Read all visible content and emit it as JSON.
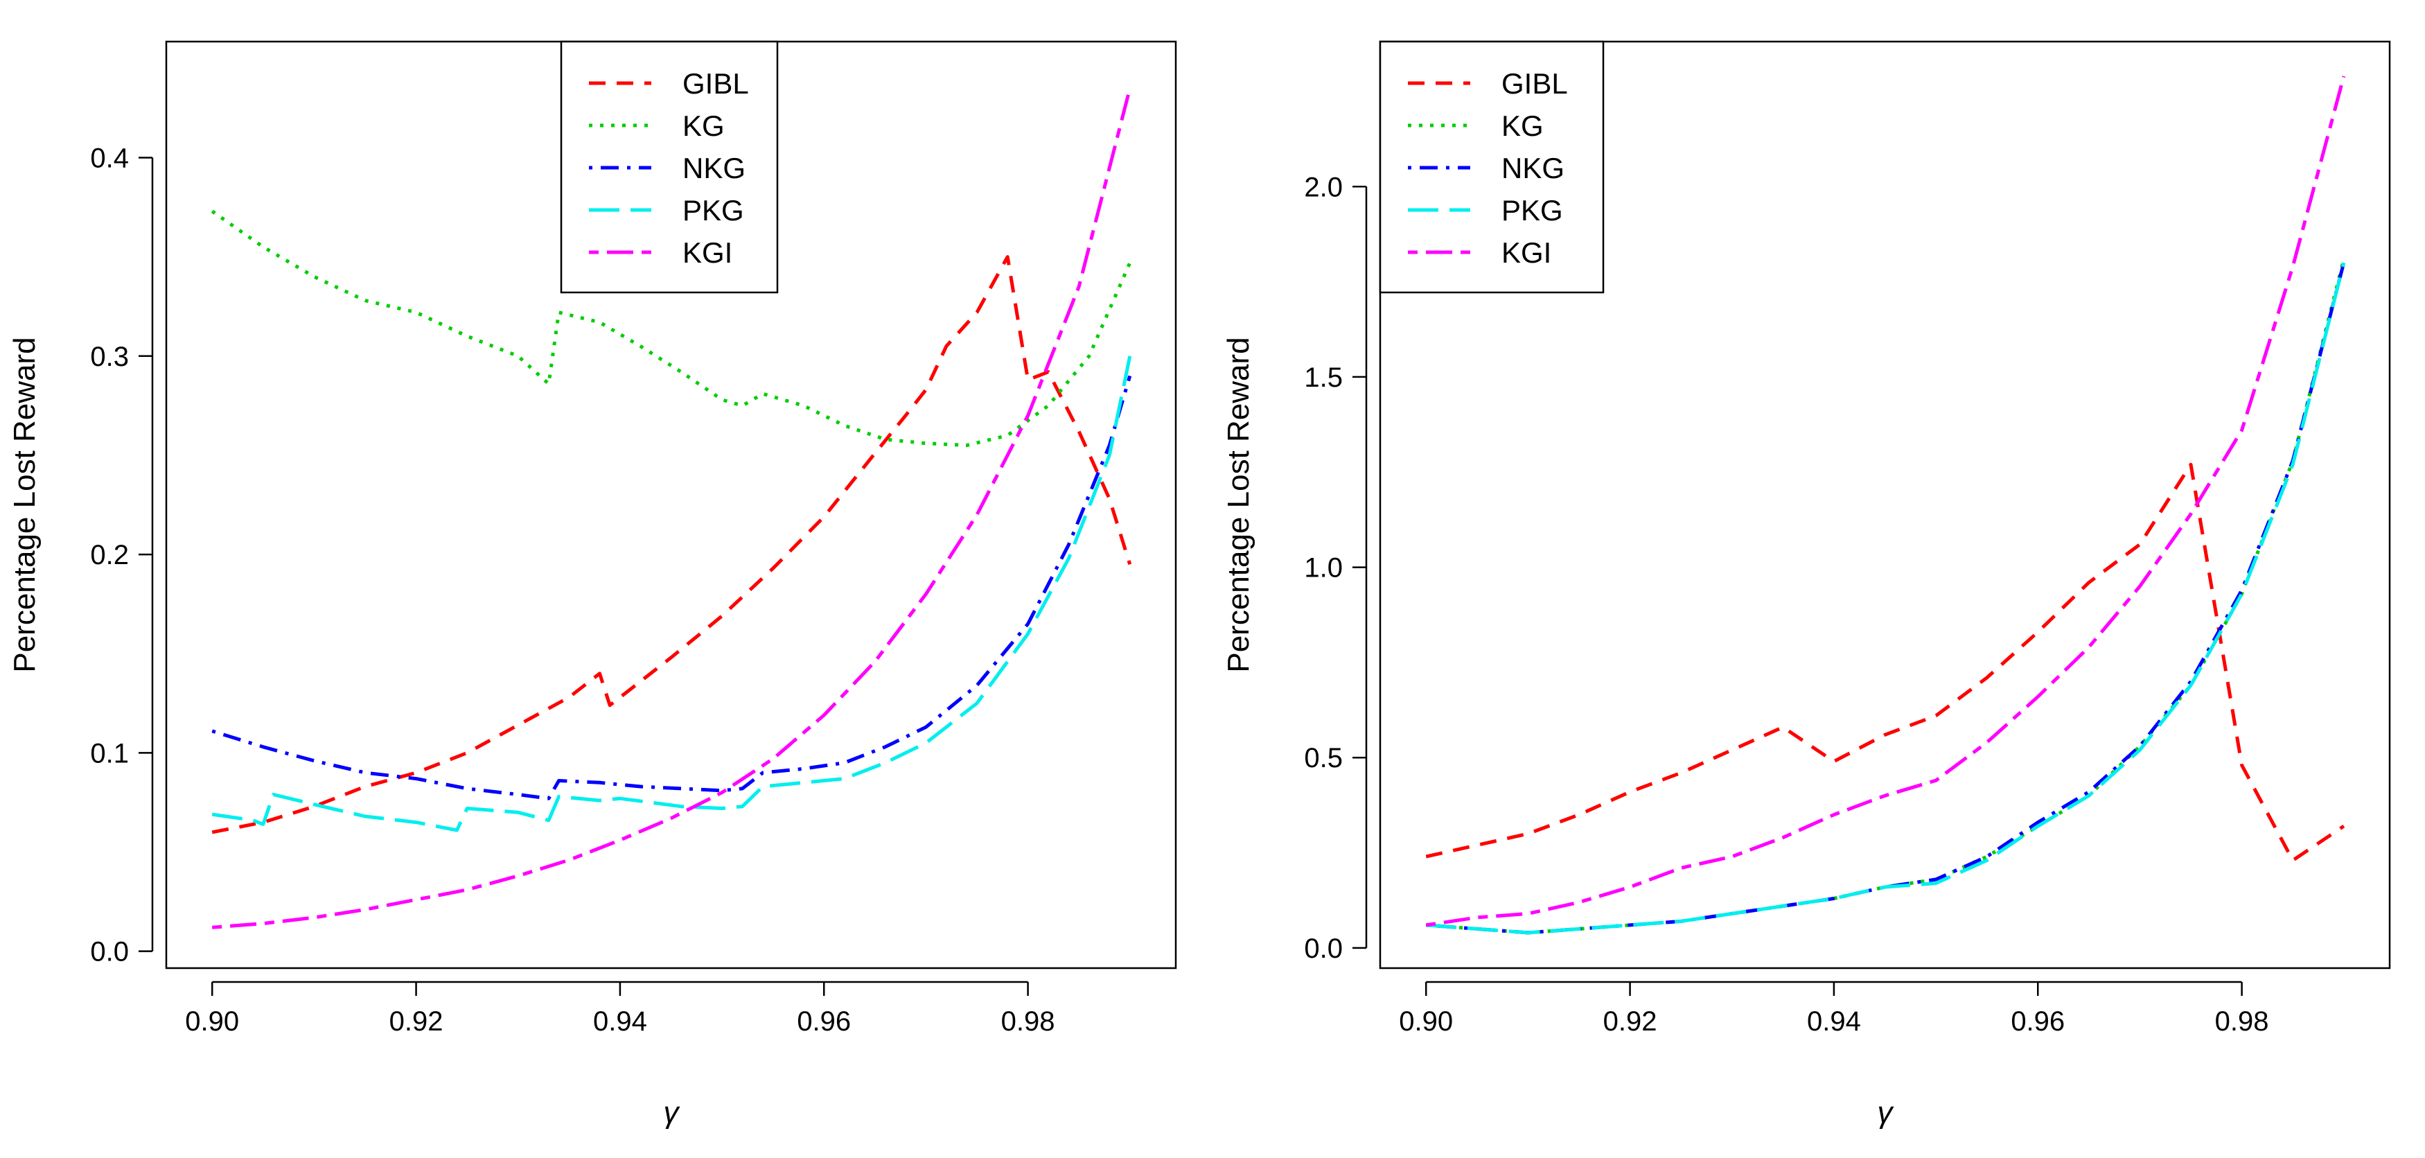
{
  "figure_title": "",
  "chart_data": [
    {
      "type": "line",
      "title": "",
      "xlabel": "γ",
      "ylabel": "Percentage Lost Reward",
      "xlim": [
        0.9,
        0.99
      ],
      "ylim": [
        0.0,
        0.45
      ],
      "grid": false,
      "legend_position": "top-center",
      "x_ticks": [
        0.9,
        0.92,
        0.94,
        0.96,
        0.98
      ],
      "x_tick_labels": [
        "0.90",
        "0.92",
        "0.94",
        "0.96",
        "0.98"
      ],
      "y_ticks": [
        0.0,
        0.1,
        0.2,
        0.3,
        0.4
      ],
      "y_tick_labels": [
        "0.0",
        "0.1",
        "0.2",
        "0.3",
        "0.4"
      ],
      "series": [
        {
          "name": "GIBL",
          "color": "#ff0000",
          "dash": "dashed",
          "x": [
            0.9,
            0.905,
            0.91,
            0.915,
            0.92,
            0.925,
            0.93,
            0.935,
            0.938,
            0.939,
            0.945,
            0.95,
            0.955,
            0.96,
            0.965,
            0.968,
            0.97,
            0.972,
            0.975,
            0.978,
            0.98,
            0.982,
            0.985,
            0.988,
            0.99
          ],
          "y": [
            0.06,
            0.065,
            0.073,
            0.083,
            0.09,
            0.1,
            0.114,
            0.128,
            0.14,
            0.124,
            0.148,
            0.169,
            0.193,
            0.219,
            0.251,
            0.27,
            0.283,
            0.305,
            0.322,
            0.35,
            0.288,
            0.292,
            0.262,
            0.228,
            0.195
          ]
        },
        {
          "name": "KG",
          "color": "#00cd00",
          "dash": "dotted",
          "x": [
            0.9,
            0.905,
            0.91,
            0.915,
            0.92,
            0.925,
            0.93,
            0.933,
            0.934,
            0.938,
            0.942,
            0.946,
            0.95,
            0.952,
            0.954,
            0.958,
            0.962,
            0.966,
            0.97,
            0.974,
            0.978,
            0.982,
            0.986,
            0.99
          ],
          "y": [
            0.373,
            0.355,
            0.34,
            0.328,
            0.322,
            0.31,
            0.3,
            0.286,
            0.322,
            0.317,
            0.305,
            0.292,
            0.278,
            0.275,
            0.281,
            0.275,
            0.265,
            0.258,
            0.256,
            0.255,
            0.26,
            0.275,
            0.3,
            0.347
          ]
        },
        {
          "name": "NKG",
          "color": "#0000ff",
          "dash": "dotdash",
          "x": [
            0.9,
            0.905,
            0.91,
            0.915,
            0.92,
            0.925,
            0.93,
            0.933,
            0.934,
            0.938,
            0.942,
            0.946,
            0.95,
            0.952,
            0.954,
            0.958,
            0.962,
            0.966,
            0.97,
            0.975,
            0.98,
            0.984,
            0.988,
            0.99
          ],
          "y": [
            0.111,
            0.103,
            0.096,
            0.09,
            0.087,
            0.082,
            0.079,
            0.077,
            0.086,
            0.085,
            0.083,
            0.082,
            0.081,
            0.082,
            0.09,
            0.092,
            0.095,
            0.103,
            0.113,
            0.134,
            0.165,
            0.205,
            0.255,
            0.29
          ]
        },
        {
          "name": "PKG",
          "color": "#00eeee",
          "dash": "longdash",
          "x": [
            0.9,
            0.904,
            0.905,
            0.906,
            0.91,
            0.915,
            0.92,
            0.924,
            0.925,
            0.93,
            0.933,
            0.934,
            0.938,
            0.94,
            0.946,
            0.95,
            0.952,
            0.954,
            0.958,
            0.962,
            0.966,
            0.97,
            0.975,
            0.98,
            0.984,
            0.988,
            0.99
          ],
          "y": [
            0.069,
            0.066,
            0.064,
            0.079,
            0.074,
            0.068,
            0.065,
            0.061,
            0.072,
            0.07,
            0.066,
            0.078,
            0.076,
            0.077,
            0.073,
            0.072,
            0.073,
            0.083,
            0.085,
            0.087,
            0.095,
            0.105,
            0.125,
            0.16,
            0.198,
            0.25,
            0.3
          ]
        },
        {
          "name": "KGI",
          "color": "#ff00ff",
          "dash": "twodash",
          "x": [
            0.9,
            0.905,
            0.91,
            0.915,
            0.92,
            0.925,
            0.93,
            0.935,
            0.94,
            0.945,
            0.95,
            0.955,
            0.96,
            0.965,
            0.97,
            0.975,
            0.98,
            0.985,
            0.99
          ],
          "y": [
            0.012,
            0.014,
            0.017,
            0.021,
            0.026,
            0.031,
            0.038,
            0.046,
            0.056,
            0.067,
            0.08,
            0.097,
            0.119,
            0.146,
            0.18,
            0.22,
            0.27,
            0.335,
            0.435
          ]
        }
      ]
    },
    {
      "type": "line",
      "title": "",
      "xlabel": "γ",
      "ylabel": "Percentage Lost Reward",
      "xlim": [
        0.9,
        0.99
      ],
      "ylim": [
        0.0,
        2.35
      ],
      "grid": false,
      "legend_position": "top-left",
      "x_ticks": [
        0.9,
        0.92,
        0.94,
        0.96,
        0.98
      ],
      "x_tick_labels": [
        "0.90",
        "0.92",
        "0.94",
        "0.96",
        "0.98"
      ],
      "y_ticks": [
        0.0,
        0.5,
        1.0,
        1.5,
        2.0
      ],
      "y_tick_labels": [
        "0.0",
        "0.5",
        "1.0",
        "1.5",
        "2.0"
      ],
      "series": [
        {
          "name": "GIBL",
          "color": "#ff0000",
          "dash": "dashed",
          "x": [
            0.9,
            0.905,
            0.91,
            0.915,
            0.92,
            0.925,
            0.93,
            0.935,
            0.94,
            0.945,
            0.95,
            0.955,
            0.96,
            0.965,
            0.97,
            0.975,
            0.98,
            0.985,
            0.99
          ],
          "y": [
            0.24,
            0.27,
            0.3,
            0.35,
            0.41,
            0.46,
            0.52,
            0.58,
            0.49,
            0.56,
            0.61,
            0.71,
            0.83,
            0.96,
            1.06,
            1.27,
            0.48,
            0.23,
            0.32
          ]
        },
        {
          "name": "KG",
          "color": "#00cd00",
          "dash": "dotted",
          "x": [
            0.9,
            0.905,
            0.91,
            0.915,
            0.92,
            0.925,
            0.93,
            0.935,
            0.94,
            0.945,
            0.95,
            0.955,
            0.96,
            0.965,
            0.97,
            0.975,
            0.98,
            0.985,
            0.99
          ],
          "y": [
            0.06,
            0.05,
            0.04,
            0.05,
            0.06,
            0.07,
            0.09,
            0.11,
            0.13,
            0.16,
            0.18,
            0.24,
            0.32,
            0.4,
            0.53,
            0.69,
            0.93,
            1.28,
            1.81
          ]
        },
        {
          "name": "NKG",
          "color": "#0000ff",
          "dash": "dotdash",
          "x": [
            0.9,
            0.905,
            0.91,
            0.915,
            0.92,
            0.925,
            0.93,
            0.935,
            0.94,
            0.945,
            0.95,
            0.955,
            0.96,
            0.965,
            0.97,
            0.975,
            0.98,
            0.985,
            0.99
          ],
          "y": [
            0.06,
            0.05,
            0.04,
            0.05,
            0.06,
            0.07,
            0.09,
            0.11,
            0.13,
            0.16,
            0.18,
            0.24,
            0.33,
            0.41,
            0.53,
            0.7,
            0.94,
            1.28,
            1.8
          ]
        },
        {
          "name": "PKG",
          "color": "#00eeee",
          "dash": "longdash",
          "x": [
            0.9,
            0.905,
            0.91,
            0.915,
            0.92,
            0.925,
            0.93,
            0.935,
            0.94,
            0.945,
            0.95,
            0.955,
            0.96,
            0.965,
            0.97,
            0.975,
            0.98,
            0.985,
            0.99
          ],
          "y": [
            0.06,
            0.05,
            0.04,
            0.05,
            0.06,
            0.07,
            0.09,
            0.11,
            0.13,
            0.16,
            0.17,
            0.23,
            0.32,
            0.4,
            0.52,
            0.69,
            0.93,
            1.27,
            1.8
          ]
        },
        {
          "name": "KGI",
          "color": "#ff00ff",
          "dash": "twodash",
          "x": [
            0.9,
            0.905,
            0.91,
            0.915,
            0.92,
            0.925,
            0.93,
            0.935,
            0.94,
            0.945,
            0.95,
            0.955,
            0.96,
            0.965,
            0.97,
            0.975,
            0.98,
            0.985,
            0.99
          ],
          "y": [
            0.06,
            0.08,
            0.09,
            0.12,
            0.16,
            0.21,
            0.24,
            0.29,
            0.35,
            0.4,
            0.44,
            0.54,
            0.66,
            0.79,
            0.95,
            1.14,
            1.36,
            1.79,
            2.29
          ]
        }
      ]
    }
  ]
}
